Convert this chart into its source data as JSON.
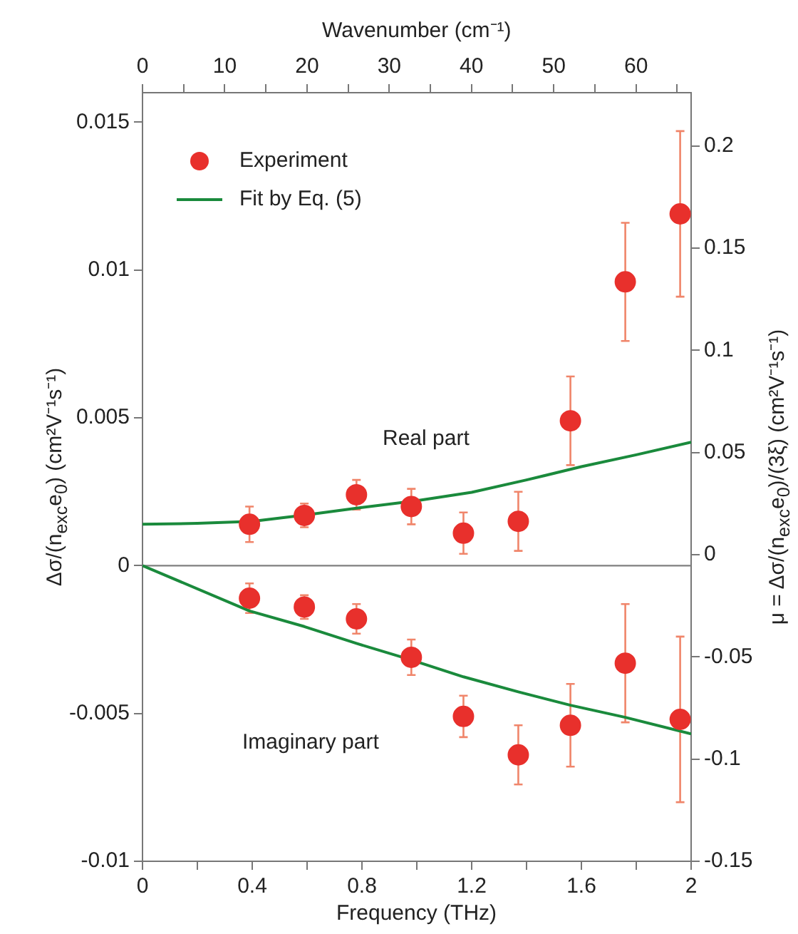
{
  "chart_data": {
    "type": "scatter",
    "xlabel": "Frequency (THz)",
    "ylabel": "Δσ/(n$_{exc}$e$_{0}$) (cm²V⁻¹s⁻¹)",
    "y2label": "μ = Δσ/(n$_{exc}$e$_{0}$)/(3ξ) (cm²V⁻¹s⁻¹)",
    "x2label": "Wavenumber (cm⁻¹)",
    "xlim": [
      0,
      2
    ],
    "xticks": [
      0,
      {
        "value": 0.2,
        "label": null
      },
      0.4,
      {
        "value": 0.6,
        "label": null
      },
      0.8,
      {
        "value": 1.0,
        "label": null
      },
      1.2,
      {
        "value": 1.4,
        "label": null
      },
      1.6,
      {
        "value": 1.8,
        "label": null
      },
      2
    ],
    "x2lim": [
      0,
      66.7
    ],
    "x2ticks": [
      0,
      {
        "value": 5,
        "label": null
      },
      10,
      {
        "value": 15,
        "label": null
      },
      20,
      {
        "value": 25,
        "label": null
      },
      30,
      {
        "value": 35,
        "label": null
      },
      40,
      {
        "value": 45,
        "label": null
      },
      50,
      {
        "value": 55,
        "label": null
      },
      60,
      {
        "value": 65,
        "label": null
      }
    ],
    "ylim": [
      -0.01,
      0.016
    ],
    "yticks": [
      -0.01,
      -0.005,
      0,
      0.005,
      0.01,
      0.015
    ],
    "y2lim": [
      -0.15,
      0.226
    ],
    "y2ticks": [
      -0.15,
      -0.1,
      -0.05,
      0,
      0.05,
      0.1,
      0.15,
      0.2
    ],
    "grid": false,
    "legend": "top left",
    "marker": "circle",
    "ref_lines": [
      {
        "axis": "y",
        "value": 0,
        "color": "#7f7f7f"
      }
    ],
    "annotations": [
      "Real part",
      "Imaginary part"
    ],
    "series": [
      {
        "name": "Experiment",
        "color": "#e8302c",
        "x": [
          0.39,
          0.59,
          0.78,
          0.98,
          1.17,
          1.37,
          1.56,
          1.76,
          1.96
        ],
        "values": [
          0.0014,
          0.0017,
          0.0024,
          0.002,
          0.0011,
          0.0015,
          0.0049,
          0.0096,
          0.0119
        ],
        "errors": [
          0.0006,
          0.0004,
          0.0005,
          0.0006,
          0.0007,
          0.001,
          0.0015,
          0.002,
          0.0028
        ]
      },
      {
        "name": "Fit by Eq. (5)",
        "type": "line",
        "color": "#1a8a3c",
        "marker": "none",
        "x": [
          0,
          0.2,
          0.4,
          0.6,
          0.8,
          1.0,
          1.2,
          1.4,
          1.6,
          1.8,
          2.0
        ],
        "values": [
          0.0014,
          0.00143,
          0.0015,
          0.00172,
          0.00197,
          0.0022,
          0.00248,
          0.0029,
          0.00335,
          0.00375,
          0.00418
        ]
      },
      {
        "type": "line",
        "color": "#1a8a3c",
        "marker": "none",
        "x": [
          0,
          0.39,
          0.59,
          0.78,
          0.98,
          1.17,
          1.37,
          1.56,
          1.76,
          2.0
        ],
        "values": [
          0,
          -0.00153,
          -0.00206,
          -0.00263,
          -0.00319,
          -0.00376,
          -0.00427,
          -0.00472,
          -0.00513,
          -0.00569
        ]
      },
      {
        "color": "#e8302c",
        "x": [
          0.39,
          0.59,
          0.78,
          0.98,
          1.17,
          1.37,
          1.56,
          1.76,
          1.96
        ],
        "values": [
          -0.0011,
          -0.0014,
          -0.0018,
          -0.0031,
          -0.0051,
          -0.0064,
          -0.0054,
          -0.0033,
          -0.0052
        ],
        "errors": [
          0.0005,
          0.0004,
          0.0005,
          0.0006,
          0.0007,
          0.001,
          0.0014,
          0.002,
          0.0028
        ]
      }
    ]
  }
}
